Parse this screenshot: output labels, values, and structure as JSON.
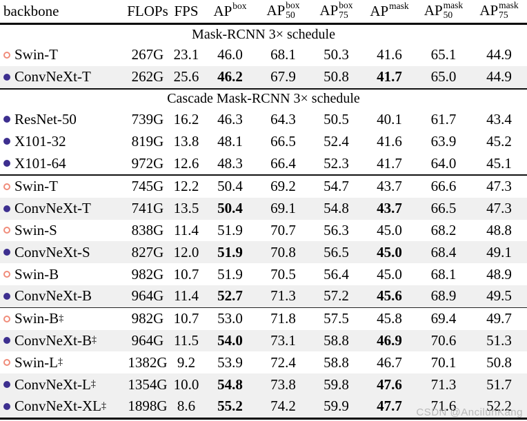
{
  "meta": {
    "watermark": "CSDN @AncilunKang"
  },
  "colors": {
    "open_circle": "#f08c7a",
    "filled_circle": "#3d2f8f",
    "row_highlight": "#f0f0f0",
    "rule": "#000000",
    "watermark": "#b9b9b9"
  },
  "table": {
    "columns": [
      {
        "key": "backbone",
        "label": "backbone"
      },
      {
        "key": "flops",
        "label": "FLOPs"
      },
      {
        "key": "fps",
        "label": "FPS"
      },
      {
        "key": "ap-box",
        "base": "AP",
        "sup": "box",
        "sub": ""
      },
      {
        "key": "ap-box-50",
        "base": "AP",
        "sup": "box",
        "sub": "50"
      },
      {
        "key": "ap-box-75",
        "base": "AP",
        "sup": "box",
        "sub": "75"
      },
      {
        "key": "ap-mask",
        "base": "AP",
        "sup": "mask",
        "sub": ""
      },
      {
        "key": "ap-mask-50",
        "base": "AP",
        "sup": "mask",
        "sub": "50"
      },
      {
        "key": "ap-mask-75",
        "base": "AP",
        "sup": "mask",
        "sub": "75"
      }
    ],
    "sections": [
      {
        "title": "Mask-RCNN 3× schedule",
        "rows": [
          {
            "marker": "open",
            "name": "Swin-T",
            "dagger": false,
            "highlight": false,
            "values": [
              "267G",
              "23.1",
              "46.0",
              "68.1",
              "50.3",
              "41.6",
              "65.1",
              "44.9"
            ],
            "bold": []
          },
          {
            "marker": "filled",
            "name": "ConvNeXt-T",
            "dagger": false,
            "highlight": true,
            "values": [
              "262G",
              "25.6",
              "46.2",
              "67.9",
              "50.8",
              "41.7",
              "65.0",
              "44.9"
            ],
            "bold": [
              2,
              5
            ],
            "rule_after": "medium"
          }
        ]
      },
      {
        "title": "Cascade Mask-RCNN 3× schedule",
        "rows": [
          {
            "marker": "filled",
            "name": "ResNet-50",
            "dagger": false,
            "highlight": false,
            "values": [
              "739G",
              "16.2",
              "46.3",
              "64.3",
              "50.5",
              "40.1",
              "61.7",
              "43.4"
            ],
            "bold": []
          },
          {
            "marker": "filled",
            "name": "X101-32",
            "dagger": false,
            "highlight": false,
            "values": [
              "819G",
              "13.8",
              "48.1",
              "66.5",
              "52.4",
              "41.6",
              "63.9",
              "45.2"
            ],
            "bold": []
          },
          {
            "marker": "filled",
            "name": "X101-64",
            "dagger": false,
            "highlight": false,
            "values": [
              "972G",
              "12.6",
              "48.3",
              "66.4",
              "52.3",
              "41.7",
              "64.0",
              "45.1"
            ],
            "bold": [],
            "rule_after": "medium"
          },
          {
            "marker": "open",
            "name": "Swin-T",
            "dagger": false,
            "highlight": false,
            "values": [
              "745G",
              "12.2",
              "50.4",
              "69.2",
              "54.7",
              "43.7",
              "66.6",
              "47.3"
            ],
            "bold": []
          },
          {
            "marker": "filled",
            "name": "ConvNeXt-T",
            "dagger": false,
            "highlight": true,
            "values": [
              "741G",
              "13.5",
              "50.4",
              "69.1",
              "54.8",
              "43.7",
              "66.5",
              "47.3"
            ],
            "bold": [
              2,
              5
            ]
          },
          {
            "marker": "open",
            "name": "Swin-S",
            "dagger": false,
            "highlight": false,
            "values": [
              "838G",
              "11.4",
              "51.9",
              "70.7",
              "56.3",
              "45.0",
              "68.2",
              "48.8"
            ],
            "bold": []
          },
          {
            "marker": "filled",
            "name": "ConvNeXt-S",
            "dagger": false,
            "highlight": true,
            "values": [
              "827G",
              "12.0",
              "51.9",
              "70.8",
              "56.5",
              "45.0",
              "68.4",
              "49.1"
            ],
            "bold": [
              2,
              5
            ]
          },
          {
            "marker": "open",
            "name": "Swin-B",
            "dagger": false,
            "highlight": false,
            "values": [
              "982G",
              "10.7",
              "51.9",
              "70.5",
              "56.4",
              "45.0",
              "68.1",
              "48.9"
            ],
            "bold": []
          },
          {
            "marker": "filled",
            "name": "ConvNeXt-B",
            "dagger": false,
            "highlight": true,
            "values": [
              "964G",
              "11.4",
              "52.7",
              "71.3",
              "57.2",
              "45.6",
              "68.9",
              "49.5"
            ],
            "bold": [
              2,
              5
            ],
            "rule_after": "thin"
          },
          {
            "marker": "open",
            "name": "Swin-B",
            "dagger": true,
            "highlight": false,
            "values": [
              "982G",
              "10.7",
              "53.0",
              "71.8",
              "57.5",
              "45.8",
              "69.4",
              "49.7"
            ],
            "bold": []
          },
          {
            "marker": "filled",
            "name": "ConvNeXt-B",
            "dagger": true,
            "highlight": true,
            "values": [
              "964G",
              "11.5",
              "54.0",
              "73.1",
              "58.8",
              "46.9",
              "70.6",
              "51.3"
            ],
            "bold": [
              2,
              5
            ]
          },
          {
            "marker": "open",
            "name": "Swin-L",
            "dagger": true,
            "highlight": false,
            "values": [
              "1382G",
              "9.2",
              "53.9",
              "72.4",
              "58.8",
              "46.7",
              "70.1",
              "50.8"
            ],
            "bold": []
          },
          {
            "marker": "filled",
            "name": "ConvNeXt-L",
            "dagger": true,
            "highlight": true,
            "values": [
              "1354G",
              "10.0",
              "54.8",
              "73.8",
              "59.8",
              "47.6",
              "71.3",
              "51.7"
            ],
            "bold": [
              2,
              5
            ]
          },
          {
            "marker": "filled",
            "name": "ConvNeXt-XL",
            "dagger": true,
            "highlight": true,
            "values": [
              "1898G",
              "8.6",
              "55.2",
              "74.2",
              "59.9",
              "47.7",
              "71.6",
              "52.2"
            ],
            "bold": [
              2,
              5
            ]
          }
        ]
      }
    ]
  }
}
